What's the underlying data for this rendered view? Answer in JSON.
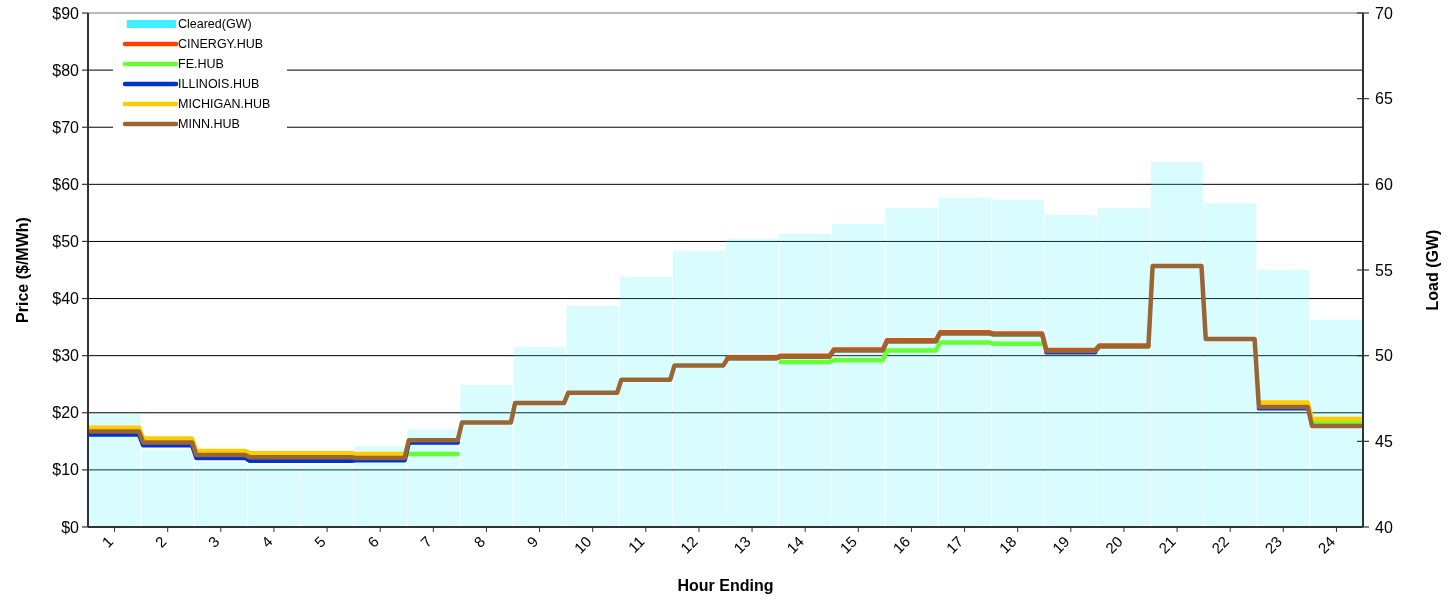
{
  "chart_data": {
    "type": "line",
    "xlabel": "Hour Ending",
    "ylabel": "Price ($/MWh)",
    "y2label": "Load (GW)",
    "x": [
      0.04,
      0.96,
      1.04,
      1.96,
      2.04,
      2.96,
      3.04,
      3.96,
      4.04,
      4.96,
      5.04,
      5.96,
      6.04,
      6.96,
      7.04,
      7.96,
      8.04,
      8.96,
      9.04,
      9.96,
      10.04,
      10.96,
      11.04,
      11.96,
      12.04,
      12.96,
      13.04,
      13.96,
      14.04,
      14.96,
      15.04,
      15.96,
      16.04,
      16.96,
      17.04,
      17.96,
      18.04,
      18.96,
      19.04,
      19.96,
      20.04,
      20.96,
      21.04,
      21.96,
      22.04,
      22.96,
      23.04,
      23.96
    ],
    "series": [
      {
        "name": "Cleared(GW)",
        "type": "bar",
        "axis": "y2",
        "color": "#40f0ff",
        "x": [
          0.5,
          1.5,
          2.5,
          3.5,
          4.5,
          5.5,
          6.5,
          7.5,
          8.5,
          9.5,
          10.5,
          11.5,
          12.5,
          13.5,
          14.5,
          15.5,
          16.5,
          17.5,
          18.5,
          19.5,
          20.5,
          21.5,
          22.5,
          23.5
        ],
        "values": [
          46.6,
          44.5,
          43.8,
          43.6,
          43.6,
          44.7,
          45.7,
          48.3,
          50.5,
          52.9,
          54.6,
          56.1,
          56.8,
          57.1,
          57.7,
          58.6,
          59.2,
          59.1,
          58.2,
          58.6,
          61.3,
          58.9,
          55.0,
          52.1
        ]
      },
      {
        "name": "CINERGY.HUB",
        "color": "#ff4000",
        "values": [
          null,
          null,
          null,
          null,
          null,
          null,
          null,
          null,
          null,
          null,
          null,
          null,
          null,
          null,
          null,
          null,
          null,
          null,
          null,
          null,
          null,
          null,
          null,
          null,
          29.7,
          29.7,
          30.0,
          30.0,
          31.1,
          31.1,
          32.7,
          32.7,
          34.1,
          34.1,
          33.9,
          33.9,
          31.0,
          31.0,
          31.8,
          31.8,
          null,
          null,
          null,
          null,
          null,
          null,
          null,
          null
        ]
      },
      {
        "name": "FE.HUB",
        "color": "#66ff33",
        "values": [
          null,
          null,
          null,
          null,
          null,
          null,
          null,
          null,
          null,
          null,
          null,
          null,
          12.8,
          12.8,
          null,
          null,
          null,
          null,
          null,
          null,
          null,
          null,
          null,
          null,
          null,
          null,
          28.9,
          28.9,
          29.2,
          29.2,
          30.9,
          30.9,
          32.3,
          32.3,
          32.1,
          32.1,
          null,
          null,
          null,
          null,
          null,
          null,
          null,
          null,
          null,
          null,
          18.3,
          18.3
        ]
      },
      {
        "name": "ILLINOIS.HUB",
        "color": "#0033cc",
        "values": [
          16.2,
          16.2,
          14.3,
          14.3,
          12.1,
          12.1,
          11.6,
          11.6,
          11.6,
          11.6,
          11.7,
          11.7,
          14.8,
          14.8,
          null,
          null,
          null,
          null,
          null,
          null,
          null,
          null,
          null,
          null,
          null,
          null,
          null,
          null,
          null,
          null,
          null,
          null,
          null,
          null,
          null,
          null,
          30.6,
          30.6,
          null,
          null,
          null,
          null,
          null,
          null,
          20.8,
          20.8,
          null,
          null
        ]
      },
      {
        "name": "MICHIGAN.HUB",
        "color": "#ffcc00",
        "values": [
          17.4,
          17.4,
          15.5,
          15.5,
          13.3,
          13.3,
          12.9,
          12.9,
          12.9,
          12.9,
          12.8,
          12.8,
          null,
          null,
          null,
          null,
          null,
          null,
          null,
          null,
          null,
          null,
          null,
          null,
          null,
          null,
          null,
          null,
          null,
          null,
          null,
          null,
          null,
          null,
          null,
          null,
          null,
          null,
          null,
          null,
          null,
          null,
          null,
          null,
          21.8,
          21.8,
          18.9,
          18.9
        ]
      },
      {
        "name": "MINN.HUB",
        "color": "#996633",
        "values": [
          16.7,
          16.7,
          14.8,
          14.8,
          12.6,
          12.6,
          12.2,
          12.2,
          12.2,
          12.2,
          12.1,
          12.1,
          15.2,
          15.2,
          18.3,
          18.3,
          21.7,
          21.7,
          23.5,
          23.5,
          25.8,
          25.8,
          28.3,
          28.3,
          29.5,
          29.5,
          29.8,
          29.8,
          30.9,
          30.9,
          32.5,
          32.5,
          33.9,
          33.9,
          33.7,
          33.7,
          30.8,
          30.8,
          31.6,
          31.6,
          45.7,
          45.7,
          32.9,
          32.9,
          21.0,
          21.0,
          17.7,
          17.7
        ]
      }
    ],
    "xlim": [
      0,
      24
    ],
    "xticks": [
      {
        "value": 0.5,
        "label": "1"
      },
      {
        "value": 1.5,
        "label": "2"
      },
      {
        "value": 2.5,
        "label": "3"
      },
      {
        "value": 3.5,
        "label": "4"
      },
      {
        "value": 4.5,
        "label": "5"
      },
      {
        "value": 5.5,
        "label": "6"
      },
      {
        "value": 6.5,
        "label": "7"
      },
      {
        "value": 7.5,
        "label": "8"
      },
      {
        "value": 8.5,
        "label": "9"
      },
      {
        "value": 9.5,
        "label": "10"
      },
      {
        "value": 10.5,
        "label": "11"
      },
      {
        "value": 11.5,
        "label": "12"
      },
      {
        "value": 12.5,
        "label": "13"
      },
      {
        "value": 13.5,
        "label": "14"
      },
      {
        "value": 14.5,
        "label": "15"
      },
      {
        "value": 15.5,
        "label": "16"
      },
      {
        "value": 16.5,
        "label": "17"
      },
      {
        "value": 17.5,
        "label": "18"
      },
      {
        "value": 18.5,
        "label": "19"
      },
      {
        "value": 19.5,
        "label": "20"
      },
      {
        "value": 20.5,
        "label": "21"
      },
      {
        "value": 21.5,
        "label": "22"
      },
      {
        "value": 22.5,
        "label": "23"
      },
      {
        "value": 23.5,
        "label": "24"
      }
    ],
    "ylim": [
      0,
      90
    ],
    "yticks": [
      {
        "value": 0,
        "label": "$0"
      },
      {
        "value": 10,
        "label": "$10"
      },
      {
        "value": 20,
        "label": "$20"
      },
      {
        "value": 30,
        "label": "$30"
      },
      {
        "value": 40,
        "label": "$40"
      },
      {
        "value": 50,
        "label": "$50"
      },
      {
        "value": 60,
        "label": "$60"
      },
      {
        "value": 70,
        "label": "$70"
      },
      {
        "value": 80,
        "label": "$80"
      },
      {
        "value": 90,
        "label": "$90"
      }
    ],
    "y2lim": [
      40,
      70
    ],
    "y2ticks": [
      40,
      45,
      50,
      55,
      60,
      65,
      70
    ],
    "grid": "y",
    "legend": "top left"
  }
}
